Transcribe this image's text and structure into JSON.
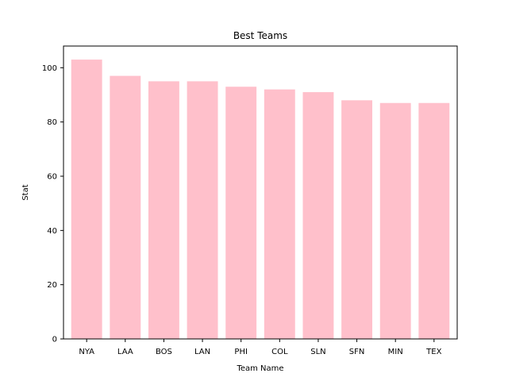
{
  "chart_data": {
    "type": "bar",
    "title": "Best Teams",
    "xlabel": "Team Name",
    "ylabel": "Stat",
    "categories": [
      "NYA",
      "LAA",
      "BOS",
      "LAN",
      "PHI",
      "COL",
      "SLN",
      "SFN",
      "MIN",
      "TEX"
    ],
    "values": [
      103,
      97,
      95,
      95,
      93,
      92,
      91,
      88,
      87,
      87
    ],
    "ylim": [
      0,
      108
    ],
    "yticks": [
      0,
      20,
      40,
      60,
      80,
      100
    ],
    "bar_color": "#ffc0cb",
    "grid": false,
    "legend": "none"
  }
}
